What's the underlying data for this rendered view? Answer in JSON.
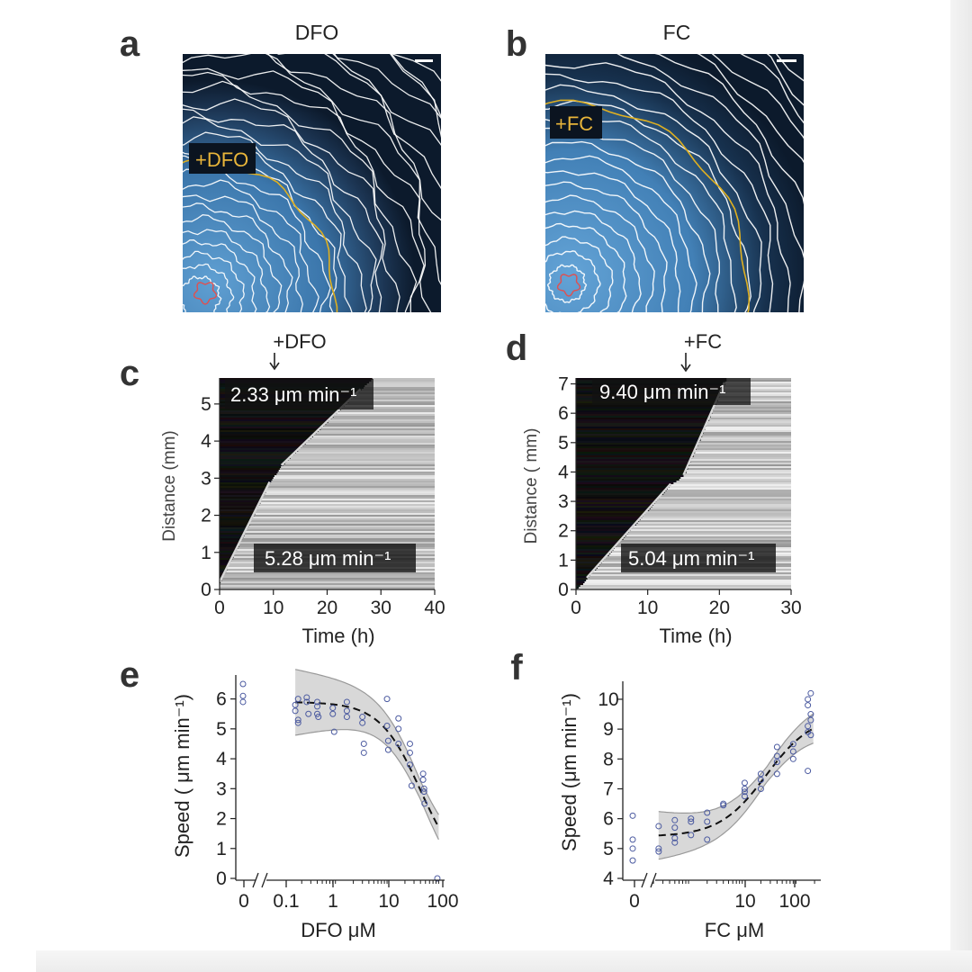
{
  "panels": {
    "a": {
      "letter": "a",
      "title": "DFO",
      "treatment_label": "+DFO",
      "colors": {
        "background": "#0b1a2c",
        "cells": "#4a8ec8",
        "contour": "#ffffff",
        "treatment_front": "#e0b020",
        "origin": "#e05050"
      }
    },
    "b": {
      "letter": "b",
      "title": "FC",
      "treatment_label": "+FC",
      "colors": {
        "background": "#0b1a2c",
        "cells": "#4a8ec8",
        "contour": "#ffffff",
        "treatment_front": "#e0b020",
        "origin": "#e05050"
      }
    },
    "c": {
      "letter": "c",
      "marker_label": "+DFO",
      "rate_after": "2.33 μm min⁻¹",
      "rate_before": "5.28 μm min⁻¹"
    },
    "d": {
      "letter": "d",
      "marker_label": "+FC",
      "rate_after": "9.40 μm min⁻¹",
      "rate_before": "5.04 μm min⁻¹"
    },
    "e": {
      "letter": "e"
    },
    "f": {
      "letter": "f"
    }
  },
  "chart_data": [
    {
      "id": "c",
      "type": "heatmap",
      "xlabel": "Time (h)",
      "ylabel": "Distance (mm)",
      "xlim": [
        0,
        40
      ],
      "ylim": [
        0,
        5.7
      ],
      "xticks": [
        0,
        10,
        20,
        30,
        40
      ],
      "yticks": [
        0,
        1,
        2,
        3,
        4,
        5
      ],
      "treatment_time": 10,
      "fits": [
        {
          "label": "5.28 μm min⁻¹",
          "x": [
            0,
            9.3
          ],
          "y": [
            0.2,
            2.9
          ]
        },
        {
          "label": "2.33 μm min⁻¹",
          "x": [
            11.5,
            26.2
          ],
          "y": [
            3.35,
            5.4
          ]
        }
      ]
    },
    {
      "id": "d",
      "type": "heatmap",
      "xlabel": "Time (h)",
      "ylabel": "Distance ( mm)",
      "xlim": [
        0,
        30
      ],
      "ylim": [
        0,
        7.2
      ],
      "xticks": [
        0,
        10,
        20,
        30
      ],
      "yticks": [
        0,
        1,
        2,
        3,
        4,
        5,
        6,
        7
      ],
      "treatment_time": 15,
      "fits": [
        {
          "label": "5.04 μm min⁻¹",
          "x": [
            1.5,
            13.2
          ],
          "y": [
            0.4,
            3.6
          ]
        },
        {
          "label": "9.40 μm min⁻¹",
          "x": [
            15,
            20.7
          ],
          "y": [
            3.9,
            7.05
          ]
        }
      ]
    },
    {
      "id": "e",
      "type": "scatter",
      "xlabel": "DFO μM",
      "ylabel": "Speed ( μm min⁻¹)",
      "xscale": "log",
      "xlim": [
        0.1,
        100
      ],
      "ylim": [
        0,
        6.5
      ],
      "xticks": [
        "0",
        "0.1",
        "1",
        "10",
        "100"
      ],
      "yticks": [
        0,
        1,
        2,
        3,
        4,
        5,
        6
      ],
      "zero_points": [
        6.5,
        6.1,
        5.9
      ],
      "points": [
        [
          0.15,
          5.8
        ],
        [
          0.15,
          5.6
        ],
        [
          0.17,
          6.0
        ],
        [
          0.17,
          5.2
        ],
        [
          0.17,
          5.3
        ],
        [
          0.25,
          6.05
        ],
        [
          0.25,
          5.9
        ],
        [
          0.27,
          5.5
        ],
        [
          0.4,
          5.9
        ],
        [
          0.4,
          5.75
        ],
        [
          0.4,
          5.5
        ],
        [
          0.42,
          5.4
        ],
        [
          0.8,
          5.7
        ],
        [
          0.8,
          5.5
        ],
        [
          0.85,
          4.9
        ],
        [
          1.5,
          5.9
        ],
        [
          1.5,
          5.6
        ],
        [
          1.5,
          5.4
        ],
        [
          3,
          5.4
        ],
        [
          3,
          5.2
        ],
        [
          3.2,
          4.5
        ],
        [
          3.2,
          4.2
        ],
        [
          9,
          6.0
        ],
        [
          9,
          5.1
        ],
        [
          9.5,
          4.6
        ],
        [
          9.5,
          4.3
        ],
        [
          15,
          5.35
        ],
        [
          15,
          5.0
        ],
        [
          15,
          4.5
        ],
        [
          25,
          4.5
        ],
        [
          25,
          4.2
        ],
        [
          25,
          3.8
        ],
        [
          27,
          3.1
        ],
        [
          45,
          3.5
        ],
        [
          45,
          3.3
        ],
        [
          47,
          3.0
        ],
        [
          47,
          2.9
        ],
        [
          48,
          2.5
        ],
        [
          85,
          0.0
        ]
      ],
      "fit": {
        "top": 5.9,
        "bottom": 0,
        "ec50": 40,
        "hill": 1.1,
        "ci": 0.3
      }
    },
    {
      "id": "f",
      "type": "scatter",
      "xlabel": "FC μM",
      "ylabel": "Speed (μm min⁻¹)",
      "xscale": "log",
      "xlim": [
        0.1,
        230
      ],
      "ylim": [
        4,
        10.3
      ],
      "xticks": [
        "0",
        "10",
        "100"
      ],
      "yticks": [
        4,
        5,
        6,
        7,
        8,
        9,
        10
      ],
      "zero_points": [
        6.1,
        5.3,
        5.0,
        4.6
      ],
      "points": [
        [
          0.25,
          5.75
        ],
        [
          0.25,
          5.0
        ],
        [
          0.25,
          4.9
        ],
        [
          0.5,
          5.95
        ],
        [
          0.5,
          5.7
        ],
        [
          0.5,
          5.35
        ],
        [
          0.5,
          5.2
        ],
        [
          1.0,
          6.0
        ],
        [
          1.0,
          5.9
        ],
        [
          1.0,
          5.45
        ],
        [
          2.0,
          6.2
        ],
        [
          2.0,
          5.9
        ],
        [
          2.0,
          5.3
        ],
        [
          4.0,
          6.45
        ],
        [
          4.0,
          6.5
        ],
        [
          10,
          7.2
        ],
        [
          10,
          7.0
        ],
        [
          10,
          6.9
        ],
        [
          10,
          6.75
        ],
        [
          20,
          7.5
        ],
        [
          20,
          7.3
        ],
        [
          20,
          7.0
        ],
        [
          40,
          8.4
        ],
        [
          40,
          8.1
        ],
        [
          40,
          7.9
        ],
        [
          40,
          7.5
        ],
        [
          80,
          8.5
        ],
        [
          80,
          8.25
        ],
        [
          80,
          8.0
        ],
        [
          150,
          10.0
        ],
        [
          150,
          9.8
        ],
        [
          150,
          9.1
        ],
        [
          150,
          8.9
        ],
        [
          150,
          7.6
        ],
        [
          170,
          10.2
        ],
        [
          170,
          9.5
        ],
        [
          170,
          9.3
        ],
        [
          170,
          8.8
        ]
      ],
      "fit": {
        "bottom": 5.4,
        "top": 9.5,
        "ec50": 25,
        "hill": 1.0,
        "ci": 0.25
      }
    }
  ]
}
